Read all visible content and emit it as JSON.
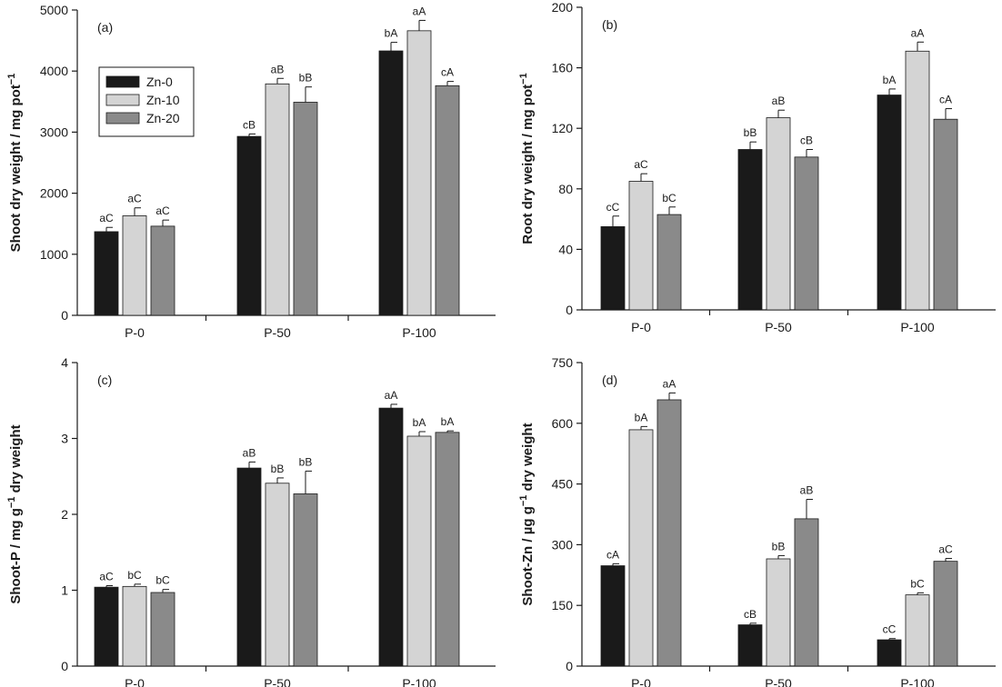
{
  "colors": {
    "Zn-0": "#1a1a1a",
    "Zn-10": "#d4d4d4",
    "Zn-20": "#8a8a8a",
    "axis": "#1a1a1a",
    "error_bar": "#1a1a1a"
  },
  "legend": {
    "entries": [
      "Zn-0",
      "Zn-10",
      "Zn-20"
    ],
    "panel": "(a)",
    "placement": "upper-left"
  },
  "chart_data": [
    {
      "id": "a",
      "type": "bar",
      "panel_label": "(a)",
      "ylabel_parts": [
        "Shoot dry weight / mg pot",
        "−1"
      ],
      "categories": [
        "P-0",
        "P-50",
        "P-100"
      ],
      "ylim": [
        0,
        5000
      ],
      "yticks": [
        0,
        1000,
        2000,
        3000,
        4000,
        5000
      ],
      "series": [
        {
          "name": "Zn-0",
          "values": [
            1370,
            2930,
            4330
          ],
          "errors": [
            70,
            40,
            140
          ],
          "labels": [
            "aC",
            "cB",
            "bA"
          ]
        },
        {
          "name": "Zn-10",
          "values": [
            1630,
            3790,
            4660
          ],
          "errors": [
            130,
            90,
            170
          ],
          "labels": [
            "aC",
            "aB",
            "aA"
          ]
        },
        {
          "name": "Zn-20",
          "values": [
            1460,
            3490,
            3760
          ],
          "errors": [
            100,
            250,
            70
          ],
          "labels": [
            "aC",
            "bB",
            "cA"
          ]
        }
      ]
    },
    {
      "id": "b",
      "type": "bar",
      "panel_label": "(b)",
      "ylabel_parts": [
        "Root dry weight / mg pot",
        "−1"
      ],
      "categories": [
        "P-0",
        "P-50",
        "P-100"
      ],
      "ylim": [
        0,
        200
      ],
      "yticks": [
        0,
        40,
        80,
        120,
        160,
        200
      ],
      "series": [
        {
          "name": "Zn-0",
          "values": [
            55,
            106,
            142
          ],
          "errors": [
            7,
            5,
            4
          ],
          "labels": [
            "cC",
            "bB",
            "bA"
          ]
        },
        {
          "name": "Zn-10",
          "values": [
            85,
            127,
            171
          ],
          "errors": [
            5,
            5,
            6
          ],
          "labels": [
            "aC",
            "aB",
            "aA"
          ]
        },
        {
          "name": "Zn-20",
          "values": [
            63,
            101,
            126
          ],
          "errors": [
            5,
            5,
            7
          ],
          "labels": [
            "bC",
            "cB",
            "cA"
          ]
        }
      ]
    },
    {
      "id": "c",
      "type": "bar",
      "panel_label": "(c)",
      "ylabel_parts": [
        "Shoot-P / mg g",
        "−1",
        " dry weight"
      ],
      "categories": [
        "P-0",
        "P-50",
        "P-100"
      ],
      "ylim": [
        0,
        4
      ],
      "yticks": [
        0,
        1,
        2,
        3,
        4
      ],
      "series": [
        {
          "name": "Zn-0",
          "values": [
            1.04,
            2.61,
            3.4
          ],
          "errors": [
            0.02,
            0.08,
            0.05
          ],
          "labels": [
            "aC",
            "aB",
            "aA"
          ]
        },
        {
          "name": "Zn-10",
          "values": [
            1.05,
            2.41,
            3.03
          ],
          "errors": [
            0.03,
            0.07,
            0.06
          ],
          "labels": [
            "bC",
            "bB",
            "bA"
          ]
        },
        {
          "name": "Zn-20",
          "values": [
            0.97,
            2.27,
            3.08
          ],
          "errors": [
            0.04,
            0.3,
            0.02
          ],
          "labels": [
            "bC",
            "bB",
            "bA"
          ]
        }
      ]
    },
    {
      "id": "d",
      "type": "bar",
      "panel_label": "(d)",
      "ylabel_parts": [
        "Shoot-Zn / µg g",
        "−1",
        " dry weight"
      ],
      "categories": [
        "P-0",
        "P-50",
        "P-100"
      ],
      "ylim": [
        0,
        750
      ],
      "yticks": [
        0,
        150,
        300,
        450,
        600,
        750
      ],
      "series": [
        {
          "name": "Zn-0",
          "values": [
            248,
            102,
            65
          ],
          "errors": [
            5,
            4,
            3
          ],
          "labels": [
            "cA",
            "cB",
            "cC"
          ]
        },
        {
          "name": "Zn-10",
          "values": [
            584,
            265,
            176
          ],
          "errors": [
            8,
            8,
            5
          ],
          "labels": [
            "bA",
            "bB",
            "bC"
          ]
        },
        {
          "name": "Zn-20",
          "values": [
            658,
            364,
            259
          ],
          "errors": [
            17,
            48,
            7
          ],
          "labels": [
            "aA",
            "aB",
            "aC"
          ]
        }
      ]
    }
  ]
}
